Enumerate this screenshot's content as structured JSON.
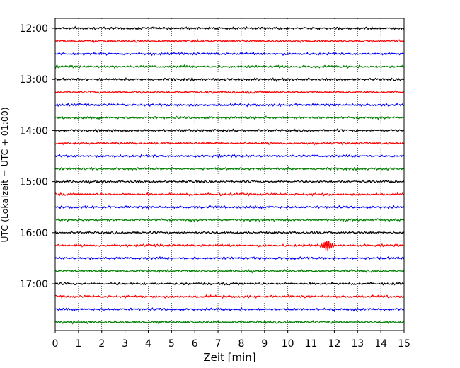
{
  "chart_data": {
    "type": "line",
    "title": "",
    "xlabel": "Zeit  [min]",
    "ylabel": "UTC (Lokalzeit = UTC + 01:00)",
    "xlim": [
      0,
      15
    ],
    "x_ticks": [
      "0",
      "1",
      "2",
      "3",
      "4",
      "5",
      "6",
      "7",
      "8",
      "9",
      "10",
      "11",
      "12",
      "13",
      "14",
      "15"
    ],
    "y_ticks": [
      "12:00",
      "13:00",
      "14:00",
      "15:00",
      "16:00",
      "17:00"
    ],
    "grid": "vertical dotted lines at each minute",
    "trace_interval_minutes": 15,
    "trace_colors": [
      "#000000",
      "#ff0000",
      "#0000ff",
      "#007f00"
    ],
    "traces": [
      {
        "start": "12:00",
        "color": "#000000"
      },
      {
        "start": "12:15",
        "color": "#ff0000"
      },
      {
        "start": "12:30",
        "color": "#0000ff"
      },
      {
        "start": "12:45",
        "color": "#007f00"
      },
      {
        "start": "13:00",
        "color": "#000000"
      },
      {
        "start": "13:15",
        "color": "#ff0000"
      },
      {
        "start": "13:30",
        "color": "#0000ff"
      },
      {
        "start": "13:45",
        "color": "#007f00"
      },
      {
        "start": "14:00",
        "color": "#000000"
      },
      {
        "start": "14:15",
        "color": "#ff0000"
      },
      {
        "start": "14:30",
        "color": "#0000ff"
      },
      {
        "start": "14:45",
        "color": "#007f00"
      },
      {
        "start": "15:00",
        "color": "#000000"
      },
      {
        "start": "15:15",
        "color": "#ff0000"
      },
      {
        "start": "15:30",
        "color": "#0000ff"
      },
      {
        "start": "15:45",
        "color": "#007f00"
      },
      {
        "start": "16:00",
        "color": "#000000"
      },
      {
        "start": "16:15",
        "color": "#ff0000",
        "event_near_min": 11.7
      },
      {
        "start": "16:30",
        "color": "#0000ff"
      },
      {
        "start": "16:45",
        "color": "#007f00"
      },
      {
        "start": "17:00",
        "color": "#000000"
      },
      {
        "start": "17:15",
        "color": "#ff0000"
      },
      {
        "start": "17:30",
        "color": "#0000ff"
      },
      {
        "start": "17:45",
        "color": "#007f00"
      }
    ]
  }
}
